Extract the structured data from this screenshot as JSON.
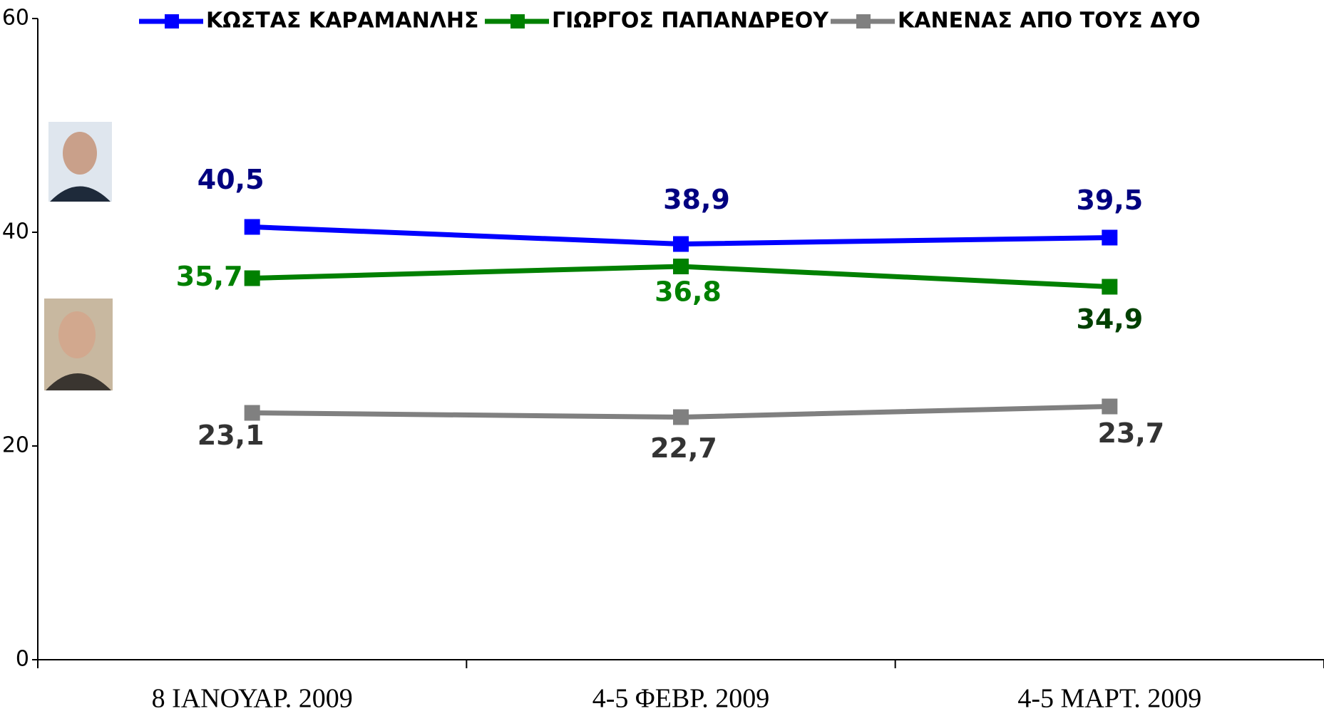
{
  "chart_data": {
    "type": "line",
    "categories": [
      "8 ΙΑΝΟΥΑΡ. 2009",
      "4-5 ΦΕΒΡ. 2009",
      "4-5 ΜΑΡΤ. 2009"
    ],
    "series": [
      {
        "name": "ΚΩΣΤΑΣ ΚΑΡΑΜΑΝΛΗΣ",
        "color": "#0000ff",
        "label_color": "#000080",
        "values": [
          40.5,
          38.9,
          39.5
        ],
        "value_labels": [
          "40,5",
          "38,9",
          "39,5"
        ]
      },
      {
        "name": "ΓΙΩΡΓΟΣ ΠΑΠΑΝΔΡΕΟΥ",
        "color": "#008000",
        "label_color": "#008000",
        "values": [
          35.7,
          36.8,
          34.9
        ],
        "value_labels": [
          "35,7",
          "36,8",
          "34,9"
        ]
      },
      {
        "name": "ΚΑΝΕΝΑΣ ΑΠΟ ΤΟΥΣ ΔΥΟ",
        "color": "#808080",
        "label_color": "#333333",
        "values": [
          23.1,
          22.7,
          23.7
        ],
        "value_labels": [
          "23,1",
          "22,7",
          "23,7"
        ]
      }
    ],
    "ylim": [
      0,
      60
    ],
    "yticks": [
      0,
      20,
      40,
      60
    ],
    "legend": "top"
  }
}
